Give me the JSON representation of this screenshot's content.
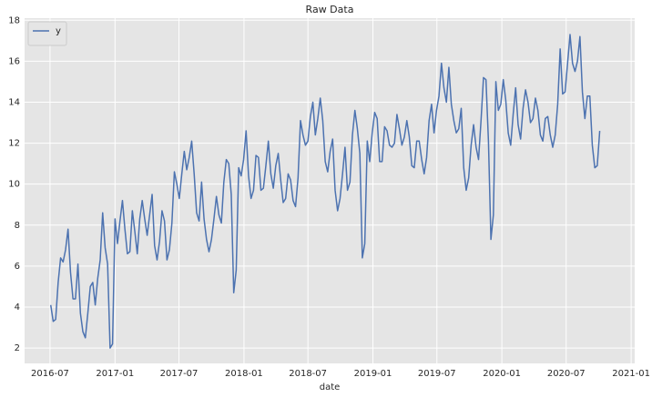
{
  "chart_data": {
    "type": "line",
    "title": "Raw Data",
    "x_label": "date",
    "x": [
      "2016-07-03",
      "2016-07-10",
      "2016-07-17",
      "2016-07-24",
      "2016-07-31",
      "2016-08-07",
      "2016-08-14",
      "2016-08-21",
      "2016-08-28",
      "2016-09-04",
      "2016-09-11",
      "2016-09-18",
      "2016-09-25",
      "2016-10-02",
      "2016-10-09",
      "2016-10-16",
      "2016-10-23",
      "2016-10-30",
      "2016-11-06",
      "2016-11-13",
      "2016-11-20",
      "2016-11-27",
      "2016-12-04",
      "2016-12-11",
      "2016-12-18",
      "2016-12-25",
      "2017-01-01",
      "2017-01-08",
      "2017-01-15",
      "2017-01-22",
      "2017-01-29",
      "2017-02-05",
      "2017-02-12",
      "2017-02-19",
      "2017-02-26",
      "2017-03-05",
      "2017-03-12",
      "2017-03-19",
      "2017-03-26",
      "2017-04-02",
      "2017-04-09",
      "2017-04-16",
      "2017-04-23",
      "2017-04-30",
      "2017-05-07",
      "2017-05-14",
      "2017-05-21",
      "2017-05-28",
      "2017-06-04",
      "2017-06-11",
      "2017-06-18",
      "2017-06-25",
      "2017-07-02",
      "2017-07-09",
      "2017-07-16",
      "2017-07-23",
      "2017-07-30",
      "2017-08-06",
      "2017-08-13",
      "2017-08-20",
      "2017-08-27",
      "2017-09-03",
      "2017-09-10",
      "2017-09-17",
      "2017-09-24",
      "2017-10-01",
      "2017-10-08",
      "2017-10-15",
      "2017-10-22",
      "2017-10-29",
      "2017-11-05",
      "2017-11-12",
      "2017-11-19",
      "2017-11-26",
      "2017-12-03",
      "2017-12-10",
      "2017-12-17",
      "2017-12-24",
      "2017-12-31",
      "2018-01-07",
      "2018-01-14",
      "2018-01-21",
      "2018-01-28",
      "2018-02-04",
      "2018-02-11",
      "2018-02-18",
      "2018-02-25",
      "2018-03-04",
      "2018-03-11",
      "2018-03-18",
      "2018-03-25",
      "2018-04-01",
      "2018-04-08",
      "2018-04-15",
      "2018-04-22",
      "2018-04-29",
      "2018-05-06",
      "2018-05-13",
      "2018-05-20",
      "2018-05-27",
      "2018-06-03",
      "2018-06-10",
      "2018-06-17",
      "2018-06-24",
      "2018-07-01",
      "2018-07-08",
      "2018-07-15",
      "2018-07-22",
      "2018-07-29",
      "2018-08-05",
      "2018-08-12",
      "2018-08-19",
      "2018-08-26",
      "2018-09-02",
      "2018-09-09",
      "2018-09-16",
      "2018-09-23",
      "2018-09-30",
      "2018-10-07",
      "2018-10-14",
      "2018-10-21",
      "2018-10-28",
      "2018-11-04",
      "2018-11-11",
      "2018-11-18",
      "2018-11-25",
      "2018-12-02",
      "2018-12-09",
      "2018-12-16",
      "2018-12-23",
      "2018-12-30",
      "2019-01-06",
      "2019-01-13",
      "2019-01-20",
      "2019-01-27",
      "2019-02-03",
      "2019-02-10",
      "2019-02-17",
      "2019-02-24",
      "2019-03-03",
      "2019-03-10",
      "2019-03-17",
      "2019-03-24",
      "2019-03-31",
      "2019-04-07",
      "2019-04-14",
      "2019-04-21",
      "2019-04-28",
      "2019-05-05",
      "2019-05-12",
      "2019-05-19",
      "2019-05-26",
      "2019-06-02",
      "2019-06-09",
      "2019-06-16",
      "2019-06-23",
      "2019-06-30",
      "2019-07-07",
      "2019-07-14",
      "2019-07-21",
      "2019-07-28",
      "2019-08-04",
      "2019-08-11",
      "2019-08-18",
      "2019-08-25",
      "2019-09-01",
      "2019-09-08",
      "2019-09-15",
      "2019-09-22",
      "2019-09-29",
      "2019-10-06",
      "2019-10-13",
      "2019-10-20",
      "2019-10-27",
      "2019-11-03",
      "2019-11-10",
      "2019-11-17",
      "2019-11-24",
      "2019-12-01",
      "2019-12-08",
      "2019-12-15",
      "2019-12-22",
      "2019-12-29",
      "2020-01-05",
      "2020-01-12",
      "2020-01-19",
      "2020-01-26",
      "2020-02-02",
      "2020-02-09",
      "2020-02-16",
      "2020-02-23",
      "2020-03-01",
      "2020-03-08",
      "2020-03-15",
      "2020-03-22",
      "2020-03-29",
      "2020-04-05",
      "2020-04-12",
      "2020-04-19",
      "2020-04-26",
      "2020-05-03",
      "2020-05-10",
      "2020-05-17",
      "2020-05-24",
      "2020-05-31",
      "2020-06-07",
      "2020-06-14",
      "2020-06-21",
      "2020-06-28",
      "2020-07-05",
      "2020-07-12",
      "2020-07-19",
      "2020-07-26",
      "2020-08-02",
      "2020-08-09",
      "2020-08-16",
      "2020-08-23",
      "2020-08-30",
      "2020-09-06",
      "2020-09-13",
      "2020-09-20",
      "2020-09-27",
      "2020-10-04"
    ],
    "series": [
      {
        "name": "y",
        "color": "#4c72b0",
        "values": [
          4.1,
          3.3,
          3.4,
          5.2,
          6.4,
          6.2,
          6.8,
          7.8,
          5.7,
          4.4,
          4.4,
          6.1,
          3.7,
          2.8,
          2.5,
          3.7,
          5.0,
          5.2,
          4.1,
          5.4,
          6.3,
          8.6,
          6.9,
          6.1,
          2.0,
          2.2,
          8.3,
          7.1,
          8.2,
          9.2,
          7.8,
          6.6,
          6.7,
          8.7,
          7.7,
          6.6,
          8.3,
          9.2,
          8.3,
          7.5,
          8.5,
          9.5,
          7.0,
          6.3,
          7.2,
          8.7,
          8.2,
          6.3,
          6.8,
          8.1,
          10.6,
          10.0,
          9.3,
          10.5,
          11.6,
          10.7,
          11.3,
          12.1,
          10.5,
          8.6,
          8.2,
          10.1,
          8.3,
          7.3,
          6.7,
          7.3,
          8.3,
          9.4,
          8.5,
          8.1,
          10.1,
          11.2,
          11.0,
          9.5,
          4.7,
          5.8,
          10.8,
          10.4,
          11.2,
          12.6,
          10.4,
          9.3,
          9.7,
          11.4,
          11.3,
          9.7,
          9.8,
          10.9,
          12.1,
          10.5,
          9.8,
          10.9,
          11.5,
          10.2,
          9.1,
          9.3,
          10.5,
          10.2,
          9.2,
          8.9,
          10.3,
          13.1,
          12.4,
          11.9,
          12.1,
          13.3,
          14.0,
          12.4,
          13.2,
          14.2,
          13.1,
          11.1,
          10.6,
          11.6,
          12.2,
          9.7,
          8.7,
          9.3,
          10.5,
          11.8,
          9.7,
          10.1,
          12.4,
          13.6,
          12.7,
          11.5,
          6.4,
          7.1,
          12.1,
          11.1,
          12.5,
          13.5,
          13.2,
          11.1,
          11.1,
          12.8,
          12.6,
          11.9,
          11.8,
          12.0,
          13.4,
          12.7,
          11.9,
          12.3,
          13.1,
          12.3,
          10.9,
          10.8,
          12.1,
          12.1,
          11.2,
          10.5,
          11.3,
          13.1,
          13.9,
          12.5,
          13.6,
          14.3,
          15.9,
          14.7,
          14.0,
          15.7,
          13.9,
          13.1,
          12.5,
          12.7,
          13.7,
          10.8,
          9.7,
          10.3,
          11.9,
          12.9,
          11.8,
          11.2,
          13.1,
          15.2,
          15.1,
          12.1,
          7.3,
          8.5,
          15.0,
          13.6,
          13.9,
          15.1,
          14.1,
          12.5,
          11.9,
          13.4,
          14.7,
          12.9,
          12.2,
          13.7,
          14.6,
          14.0,
          13.0,
          13.2,
          14.2,
          13.6,
          12.4,
          12.1,
          13.2,
          13.3,
          12.4,
          11.8,
          12.4,
          13.9,
          16.6,
          14.4,
          14.5,
          15.9,
          17.3,
          15.9,
          15.5,
          16.0,
          17.2,
          14.5,
          13.2,
          14.3,
          14.3,
          11.9,
          10.8,
          10.9,
          12.6
        ]
      }
    ],
    "xlim": [
      "2016-04-20",
      "2021-01-11"
    ],
    "xticks": [
      {
        "value": "2016-07-01",
        "label": "2016-07"
      },
      {
        "value": "2017-01-01",
        "label": "2017-01"
      },
      {
        "value": "2017-07-01",
        "label": "2017-07"
      },
      {
        "value": "2018-01-01",
        "label": "2018-01"
      },
      {
        "value": "2018-07-01",
        "label": "2018-07"
      },
      {
        "value": "2019-01-01",
        "label": "2019-01"
      },
      {
        "value": "2019-07-01",
        "label": "2019-07"
      },
      {
        "value": "2020-01-01",
        "label": "2020-01"
      },
      {
        "value": "2020-07-01",
        "label": "2020-07"
      },
      {
        "value": "2021-01-01",
        "label": "2021-01"
      }
    ],
    "ylim": [
      1.25,
      18.1
    ],
    "yticks": [
      2,
      4,
      6,
      8,
      10,
      12,
      14,
      16,
      18
    ],
    "grid": true,
    "legend": "upper left"
  }
}
